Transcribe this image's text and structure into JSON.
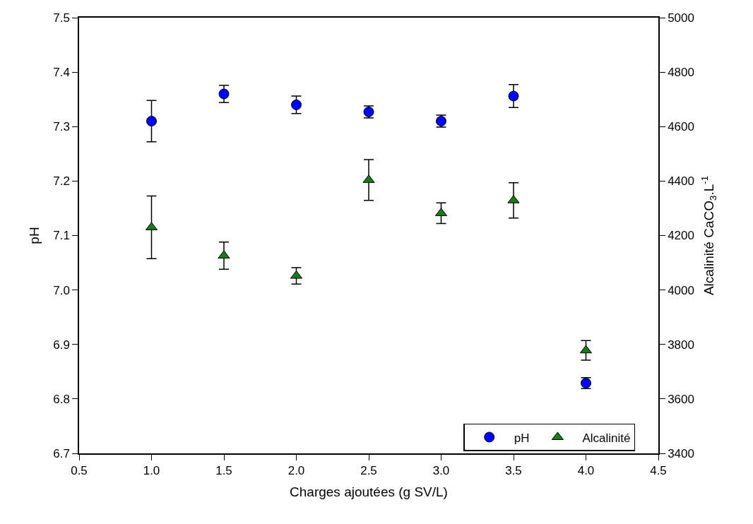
{
  "chart_data": {
    "type": "scatter",
    "xlabel": "Charges ajoutées (g SV/L)",
    "ylabel": "pH",
    "y2label": "Alcalinité CaCO$_{3}$.L$^{-1}$",
    "x": [
      1.0,
      1.5,
      2.0,
      2.5,
      3.0,
      3.5,
      4.0
    ],
    "series": [
      {
        "name": "pH",
        "color": "#0000ff",
        "marker": "circle",
        "values": [
          7.31,
          7.36,
          7.34,
          7.327,
          7.31,
          7.356,
          6.829
        ],
        "errors": [
          0.038,
          0.016,
          0.016,
          0.011,
          0.011,
          0.021,
          0.01
        ]
      },
      {
        "name": "Alcalinité",
        "color": "#1a7a1a",
        "marker": "triangle",
        "axis": "y2",
        "values": [
          4230,
          4126,
          4052,
          4404,
          4282,
          4329,
          3778
        ],
        "errors": [
          115,
          50,
          30,
          75,
          38,
          65,
          36
        ]
      }
    ],
    "xlim": [
      0.5,
      4.5
    ],
    "xticks": [
      0.5,
      {
        "value": 1,
        "label": "1.0"
      },
      1.5,
      {
        "value": 2,
        "label": "2.0"
      },
      2.5,
      {
        "value": 3,
        "label": "3.0"
      },
      3.5,
      {
        "value": 4,
        "label": "4.0"
      },
      4.5
    ],
    "ylim": [
      6.7,
      7.5
    ],
    "yticks": [
      6.7,
      6.8,
      6.9,
      {
        "value": 7,
        "label": "7.0"
      },
      7.1,
      7.2,
      7.3,
      7.4,
      7.5
    ],
    "y2lim": [
      3400,
      5000
    ],
    "y2ticks": [
      3400,
      3600,
      3800,
      4000,
      4200,
      4400,
      4600,
      4800,
      5000
    ],
    "legend": "bottom right"
  }
}
